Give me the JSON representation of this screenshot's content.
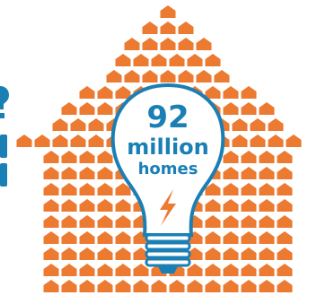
{
  "stat": {
    "number": "92",
    "unit": "million",
    "subject": "homes"
  },
  "icons": {
    "home": "house-icon",
    "bulb": "lightbulb-icon",
    "bolt": "lightning-bolt-icon"
  },
  "colors": {
    "house": "#ec7a31",
    "bulb_stroke": "#1a7fb5",
    "text": "#1a7fb5",
    "bolt": "#ec7a31",
    "background": "#ffffff"
  }
}
